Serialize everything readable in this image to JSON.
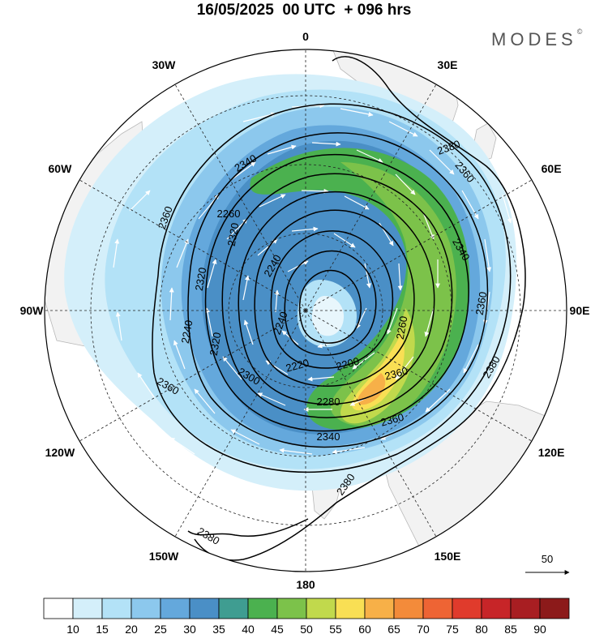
{
  "title": "16/05/2025  00 UTC  + 096 hrs",
  "brand": {
    "name": "MODES",
    "mark": "©"
  },
  "meridian_labels": [
    {
      "text": "0",
      "angle": 0
    },
    {
      "text": "30E",
      "angle": 30
    },
    {
      "text": "60E",
      "angle": 60
    },
    {
      "text": "90E",
      "angle": 90
    },
    {
      "text": "120E",
      "angle": 120
    },
    {
      "text": "150E",
      "angle": 150
    },
    {
      "text": "180",
      "angle": 180
    },
    {
      "text": "150W",
      "angle": 210
    },
    {
      "text": "120W",
      "angle": 240
    },
    {
      "text": "90W",
      "angle": 270
    },
    {
      "text": "60W",
      "angle": 300
    },
    {
      "text": "30W",
      "angle": 330
    }
  ],
  "contour_labels": [
    {
      "text": "2380"
    },
    {
      "text": "2340"
    },
    {
      "text": "2360"
    },
    {
      "text": "2320"
    },
    {
      "text": "2260"
    },
    {
      "text": "2240"
    },
    {
      "text": "2320"
    },
    {
      "text": "2240"
    },
    {
      "text": "2360"
    },
    {
      "text": "2340"
    },
    {
      "text": "2360"
    },
    {
      "text": "2320"
    },
    {
      "text": "2240"
    },
    {
      "text": "2260"
    },
    {
      "text": "2200"
    },
    {
      "text": "2220"
    },
    {
      "text": "2360"
    },
    {
      "text": "2380"
    },
    {
      "text": "2300"
    },
    {
      "text": "2360"
    },
    {
      "text": "2280"
    },
    {
      "text": "2340"
    },
    {
      "text": "2360"
    },
    {
      "text": "2380"
    },
    {
      "text": "2380"
    }
  ],
  "vector_reference": {
    "label": "50"
  },
  "colorbar": {
    "labels": [
      "10",
      "15",
      "20",
      "25",
      "30",
      "35",
      "40",
      "45",
      "50",
      "55",
      "60",
      "65",
      "70",
      "75",
      "80",
      "85",
      "90"
    ],
    "colors": [
      "#ffffff",
      "#d4effa",
      "#b3e2f7",
      "#8cc8ed",
      "#64a8dc",
      "#4a8fc6",
      "#3f9d91",
      "#4bb14f",
      "#7cc24a",
      "#c1d94c",
      "#f9df54",
      "#f7b048",
      "#f38b3a",
      "#ee6434",
      "#e03b2c",
      "#c72528",
      "#a81e22",
      "#8c1a1a"
    ]
  }
}
